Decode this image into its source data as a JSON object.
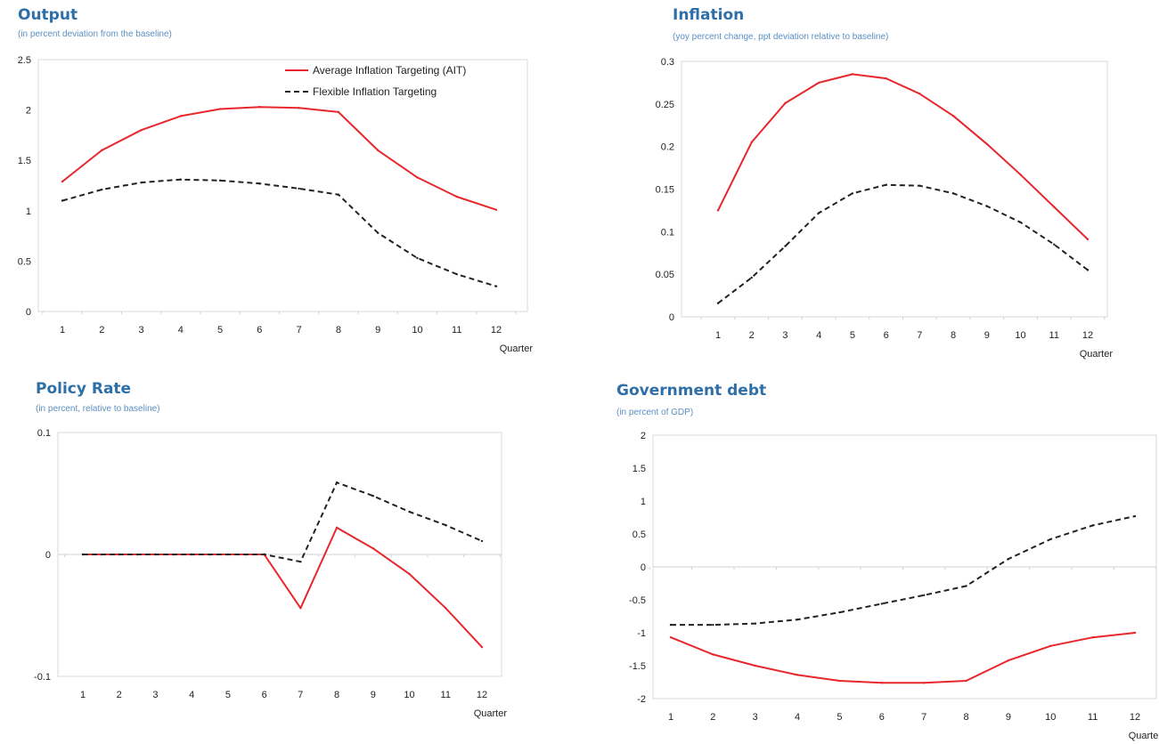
{
  "legend": {
    "ait_label": "Average Inflation Targeting (AIT)",
    "fit_label": "Flexible Inflation Targeting"
  },
  "colors": {
    "ait": "#e8262d",
    "fit": "#222222",
    "title": "#2f6fa8",
    "subtitle": "#5b8fc4"
  },
  "chart_data": [
    {
      "type": "line",
      "title": "Output",
      "subtitle": "(in percent deviation from the baseline)",
      "xlabel": "Quarter",
      "ylabel": "",
      "x": [
        1,
        2,
        3,
        4,
        5,
        6,
        7,
        8,
        9,
        10,
        11,
        12
      ],
      "ylim": [
        0,
        2.5
      ],
      "yticks": [
        "0",
        "0.5",
        "1",
        "1.5",
        "2",
        "2.5"
      ],
      "yticks_values": [
        0,
        0.5,
        1,
        1.5,
        2,
        2.5
      ],
      "grid": false,
      "legend_position": "top-right",
      "series": [
        {
          "name": "Average Inflation Targeting (AIT)",
          "style": "solid",
          "values": [
            1.29,
            1.6,
            1.8,
            1.94,
            2.01,
            2.03,
            2.02,
            1.98,
            1.6,
            1.33,
            1.14,
            1.01
          ]
        },
        {
          "name": "Flexible Inflation Targeting",
          "style": "dashed",
          "values": [
            1.1,
            1.21,
            1.28,
            1.31,
            1.3,
            1.27,
            1.22,
            1.16,
            0.78,
            0.53,
            0.37,
            0.25
          ]
        }
      ]
    },
    {
      "type": "line",
      "title": "Inflation",
      "subtitle": "(yoy percent change, ppt deviation relative to baseline)",
      "xlabel": "Quarter",
      "ylabel": "",
      "x": [
        1,
        2,
        3,
        4,
        5,
        6,
        7,
        8,
        9,
        10,
        11,
        12
      ],
      "ylim": [
        0,
        0.3
      ],
      "yticks": [
        "0",
        "0.05",
        "0.1",
        "0.15",
        "0.2",
        "0.25",
        "0.3"
      ],
      "yticks_values": [
        0,
        0.05,
        0.1,
        0.15,
        0.2,
        0.25,
        0.3
      ],
      "grid": false,
      "series": [
        {
          "name": "Average Inflation Targeting (AIT)",
          "style": "solid",
          "values": [
            0.125,
            0.205,
            0.251,
            0.275,
            0.285,
            0.28,
            0.262,
            0.236,
            0.203,
            0.167,
            0.129,
            0.091
          ]
        },
        {
          "name": "Flexible Inflation Targeting",
          "style": "dashed",
          "values": [
            0.016,
            0.046,
            0.083,
            0.122,
            0.145,
            0.155,
            0.154,
            0.145,
            0.13,
            0.111,
            0.085,
            0.055
          ]
        }
      ]
    },
    {
      "type": "line",
      "title": "Policy Rate",
      "subtitle": "(in percent, relative to baseline)",
      "xlabel": "Quarter",
      "ylabel": "",
      "x": [
        1,
        2,
        3,
        4,
        5,
        6,
        7,
        8,
        9,
        10,
        11,
        12
      ],
      "ylim": [
        -0.1,
        0.1
      ],
      "yticks": [
        "-0.1",
        "0",
        "0.1"
      ],
      "yticks_values": [
        -0.1,
        0,
        0.1
      ],
      "grid": false,
      "series": [
        {
          "name": "Average Inflation Targeting (AIT)",
          "style": "solid",
          "values": [
            0,
            0,
            0,
            0,
            0,
            0,
            -0.044,
            0.022,
            0.005,
            -0.016,
            -0.044,
            -0.076
          ]
        },
        {
          "name": "Flexible Inflation Targeting",
          "style": "dashed",
          "values": [
            0,
            0,
            0,
            0,
            0,
            0,
            -0.006,
            0.059,
            0.048,
            0.035,
            0.024,
            0.011
          ]
        }
      ]
    },
    {
      "type": "line",
      "title": "Government debt",
      "subtitle": "(in percent of GDP)",
      "xlabel": "Quarter",
      "ylabel": "",
      "x": [
        1,
        2,
        3,
        4,
        5,
        6,
        7,
        8,
        9,
        10,
        11,
        12
      ],
      "ylim": [
        -2,
        2
      ],
      "yticks": [
        "-2",
        "-1.5",
        "-1",
        "-0.5",
        "0",
        "0.5",
        "1",
        "1.5",
        "2"
      ],
      "yticks_values": [
        -2,
        -1.5,
        -1,
        -0.5,
        0,
        0.5,
        1,
        1.5,
        2
      ],
      "grid": false,
      "series": [
        {
          "name": "Average Inflation Targeting (AIT)",
          "style": "solid",
          "values": [
            -1.07,
            -1.33,
            -1.5,
            -1.64,
            -1.73,
            -1.76,
            -1.76,
            -1.73,
            -1.42,
            -1.2,
            -1.07,
            -1.0
          ]
        },
        {
          "name": "Flexible Inflation Targeting",
          "style": "dashed",
          "values": [
            -0.88,
            -0.88,
            -0.86,
            -0.8,
            -0.69,
            -0.56,
            -0.43,
            -0.29,
            0.12,
            0.42,
            0.63,
            0.77
          ]
        }
      ]
    }
  ]
}
